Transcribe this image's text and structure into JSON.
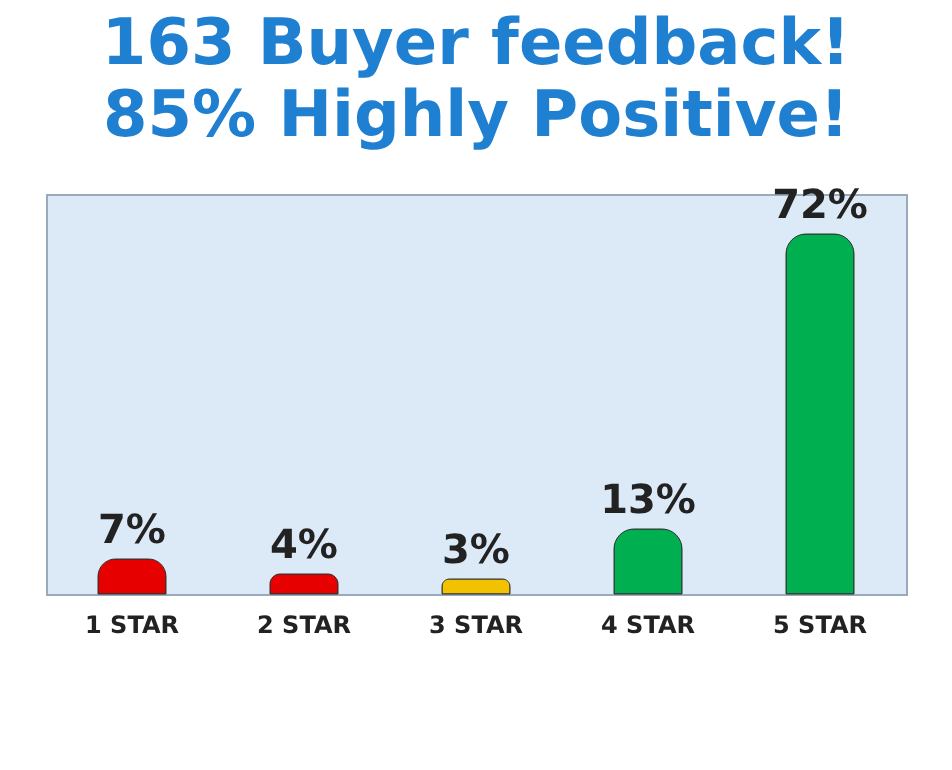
{
  "chart_data": {
    "type": "bar",
    "title": "163 Buyer feedback!",
    "subtitle": "85% Highly Positive!",
    "categories": [
      "1 STAR",
      "2 STAR",
      "3 STAR",
      "4 STAR",
      "5 STAR"
    ],
    "values": [
      7,
      4,
      3,
      13,
      72
    ],
    "colors": [
      "#e60000",
      "#e60000",
      "#f2c200",
      "#00b050",
      "#00b050"
    ],
    "value_labels": [
      "7%",
      "4%",
      "3%",
      "13%",
      "72%"
    ]
  }
}
